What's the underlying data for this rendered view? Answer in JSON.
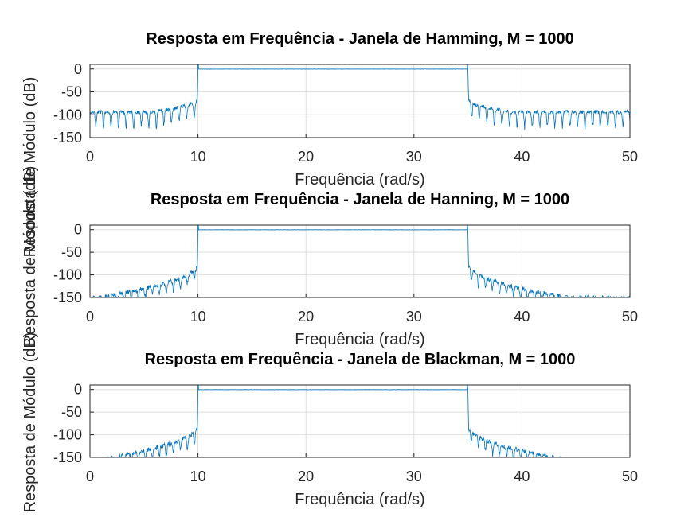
{
  "figure": {
    "background": "#ffffff"
  },
  "chart_data": [
    {
      "type": "line",
      "title": "Resposta em Frequência - Janela de Hamming, M = 1000",
      "xlabel": "Frequência (rad/s)",
      "ylabel": "Resposta de Módulo (dB)",
      "xlim": [
        0,
        50
      ],
      "ylim": [
        -150,
        10
      ],
      "xticks": [
        0,
        10,
        20,
        30,
        40,
        50
      ],
      "yticks": [
        0,
        -50,
        -100,
        -150
      ],
      "xtick_labels": [
        "0",
        "10",
        "20",
        "30",
        "40",
        "50"
      ],
      "ytick_labels": [
        "0",
        "-50",
        "-100",
        "-150"
      ],
      "grid": true,
      "line_color": "#0072BD",
      "series": [
        {
          "name": "Hamming",
          "window": "hamming",
          "passband": [
            10,
            35
          ],
          "passband_level_db": 0,
          "stopband_level_db": -90,
          "edge_level_db": -65
        }
      ]
    },
    {
      "type": "line",
      "title": "Resposta em Frequência - Janela de Hanning, M = 1000",
      "xlabel": "Frequência (rad/s)",
      "ylabel": "Resposta de Módulo (dB)",
      "xlim": [
        0,
        50
      ],
      "ylim": [
        -150,
        10
      ],
      "xticks": [
        0,
        10,
        20,
        30,
        40,
        50
      ],
      "yticks": [
        0,
        -50,
        -100,
        -150
      ],
      "xtick_labels": [
        "0",
        "10",
        "20",
        "30",
        "40",
        "50"
      ],
      "ytick_labels": [
        "0",
        "-50",
        "-100",
        "-150"
      ],
      "grid": true,
      "line_color": "#0072BD",
      "series": [
        {
          "name": "Hanning",
          "window": "hanning",
          "passband": [
            10,
            35
          ],
          "passband_level_db": 0,
          "stopband_level_db": -145,
          "edge_level_db": -75
        }
      ]
    },
    {
      "type": "line",
      "title": "Resposta em Frequência - Janela de Blackman, M = 1000",
      "xlabel": "Frequência (rad/s)",
      "ylabel": "Resposta de Módulo (dB)",
      "xlim": [
        0,
        50
      ],
      "ylim": [
        -150,
        10
      ],
      "xticks": [
        0,
        10,
        20,
        30,
        40,
        50
      ],
      "yticks": [
        0,
        -50,
        -100,
        -150
      ],
      "xtick_labels": [
        "0",
        "10",
        "20",
        "30",
        "40",
        "50"
      ],
      "ytick_labels": [
        "0",
        "-50",
        "-100",
        "-150"
      ],
      "grid": true,
      "line_color": "#0072BD",
      "series": [
        {
          "name": "Blackman",
          "window": "blackman",
          "passband": [
            10,
            35
          ],
          "passband_level_db": 0,
          "stopband_level_db": -150,
          "edge_level_db": -80
        }
      ]
    }
  ]
}
